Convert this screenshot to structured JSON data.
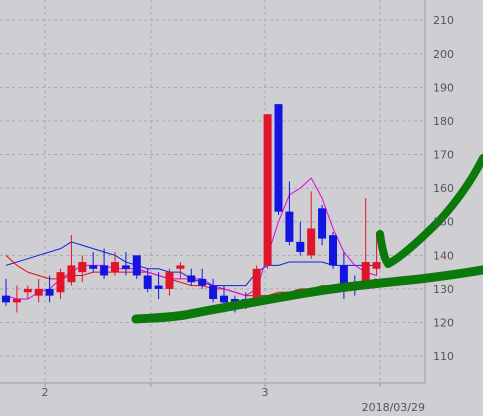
{
  "chart_data": {
    "type": "candlestick",
    "title": "",
    "xlabel": "",
    "ylabel": "",
    "ylim": [
      102,
      216
    ],
    "y_ticks": [
      110,
      120,
      130,
      140,
      150,
      160,
      170,
      180,
      190,
      200,
      210
    ],
    "x_tick_labels": [
      "2",
      "3"
    ],
    "date_label": "2018/03/29",
    "grid": true,
    "colors": {
      "up": "#e0142a",
      "down": "#1414e0",
      "ma_short": "#e000e0",
      "ma_mid": "#e01010",
      "ma_long": "#1020e0",
      "annotation": "#0b7a0b",
      "grid": "#a8a8ae",
      "background": "#cfcfd3"
    },
    "candles": [
      {
        "open": 128,
        "high": 133,
        "low": 125,
        "close": 126
      },
      {
        "open": 126,
        "high": 131,
        "low": 123,
        "close": 127
      },
      {
        "open": 129,
        "high": 131,
        "low": 127,
        "close": 130
      },
      {
        "open": 128,
        "high": 133,
        "low": 126,
        "close": 130
      },
      {
        "open": 130,
        "high": 134,
        "low": 126,
        "close": 128
      },
      {
        "open": 129,
        "high": 136,
        "low": 127,
        "close": 135
      },
      {
        "open": 132,
        "high": 146,
        "low": 131,
        "close": 137
      },
      {
        "open": 135,
        "high": 140,
        "low": 132,
        "close": 138
      },
      {
        "open": 137,
        "high": 141,
        "low": 135,
        "close": 136
      },
      {
        "open": 137,
        "high": 142,
        "low": 133,
        "close": 134
      },
      {
        "open": 135,
        "high": 141,
        "low": 134,
        "close": 138
      },
      {
        "open": 137,
        "high": 141,
        "low": 134,
        "close": 136
      },
      {
        "open": 140,
        "high": 140,
        "low": 133,
        "close": 134
      },
      {
        "open": 134,
        "high": 136,
        "low": 129,
        "close": 130
      },
      {
        "open": 131,
        "high": 135,
        "low": 127,
        "close": 130
      },
      {
        "open": 130,
        "high": 136,
        "low": 128,
        "close": 135
      },
      {
        "open": 136,
        "high": 138,
        "low": 133,
        "close": 137
      },
      {
        "open": 134,
        "high": 136,
        "low": 131,
        "close": 132
      },
      {
        "open": 133,
        "high": 136,
        "low": 130,
        "close": 131
      },
      {
        "open": 131,
        "high": 133,
        "low": 126,
        "close": 127
      },
      {
        "open": 128,
        "high": 131,
        "low": 123,
        "close": 126
      },
      {
        "open": 127,
        "high": 128,
        "low": 123,
        "close": 126
      },
      {
        "open": 127,
        "high": 129,
        "low": 124,
        "close": 125
      },
      {
        "open": 126,
        "high": 137,
        "low": 125,
        "close": 136
      },
      {
        "open": 137,
        "high": 182,
        "low": 136,
        "close": 182
      },
      {
        "open": 185,
        "high": 185,
        "low": 152,
        "close": 153
      },
      {
        "open": 153,
        "high": 162,
        "low": 143,
        "close": 144
      },
      {
        "open": 144,
        "high": 150,
        "low": 140,
        "close": 141
      },
      {
        "open": 140,
        "high": 159,
        "low": 139,
        "close": 148
      },
      {
        "open": 154,
        "high": 155,
        "low": 143,
        "close": 145
      },
      {
        "open": 146,
        "high": 147,
        "low": 136,
        "close": 137
      },
      {
        "open": 137,
        "high": 141,
        "low": 127,
        "close": 131
      },
      {
        "open": 131,
        "high": 134,
        "low": 128,
        "close": 130
      },
      {
        "open": 132,
        "high": 157,
        "low": 131,
        "close": 138
      },
      {
        "open": 136,
        "high": 147,
        "low": 134,
        "close": 138
      }
    ],
    "ma_short": [
      128,
      127,
      127,
      129,
      130,
      133,
      135,
      137,
      137,
      137,
      136,
      136,
      136,
      135,
      134,
      133,
      133,
      133,
      133,
      131,
      130,
      129,
      128,
      130,
      140,
      150,
      158,
      160,
      163,
      157,
      148,
      141,
      137,
      135,
      134
    ],
    "ma_mid": [
      140,
      137,
      135,
      134,
      133,
      133,
      134,
      134,
      135,
      135,
      135,
      135,
      135,
      135,
      134,
      133,
      132,
      131,
      131,
      130,
      130,
      129,
      128,
      128,
      128,
      129,
      129,
      130,
      130,
      131,
      131,
      131,
      131,
      132,
      133
    ],
    "ma_long": [
      137,
      138,
      139,
      140,
      141,
      142,
      144,
      143,
      142,
      141,
      140,
      138,
      137,
      136,
      136,
      135,
      135,
      133,
      132,
      131,
      131,
      131,
      131,
      135,
      137,
      137,
      138,
      138,
      138,
      138,
      137,
      137,
      137,
      137,
      137
    ]
  }
}
